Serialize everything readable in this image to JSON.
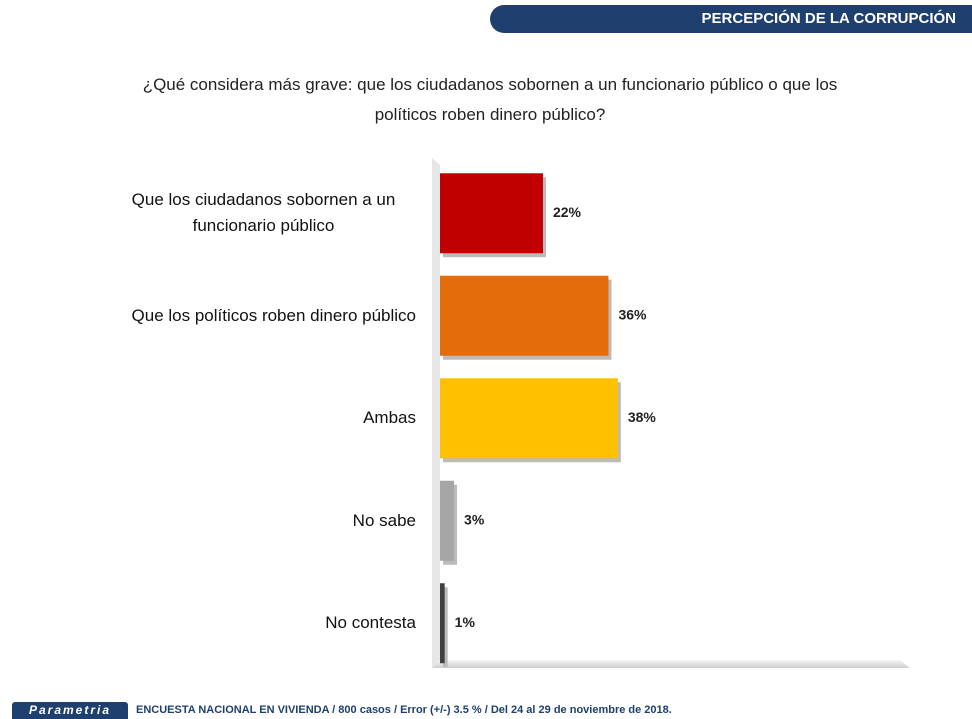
{
  "header": {
    "section": "PERCEPCIÓN DE LA CORRUPCIÓN"
  },
  "chart_data": {
    "type": "bar",
    "orientation": "horizontal",
    "title": "¿Qué considera más grave: que los ciudadanos sobornen a un funcionario público o que los políticos roben dinero público?",
    "categories": [
      "Que los ciudadanos sobornen a un funcionario público",
      "Que los políticos roben dinero público",
      "Ambas",
      "No sabe",
      "No contesta"
    ],
    "values": [
      22,
      36,
      38,
      3,
      1
    ],
    "value_labels": [
      "22%",
      "36%",
      "38%",
      "3%",
      "1%"
    ],
    "colors": [
      "#c00000",
      "#e46c0a",
      "#ffc000",
      "#a6a6a6",
      "#404040"
    ]
  },
  "footer": {
    "brand": "Parametria",
    "note": "ENCUESTA NACIONAL EN VIVIENDA / 800 casos / Error (+/-) 3.5 % / Del 24 al 29 de noviembre de 2018."
  }
}
